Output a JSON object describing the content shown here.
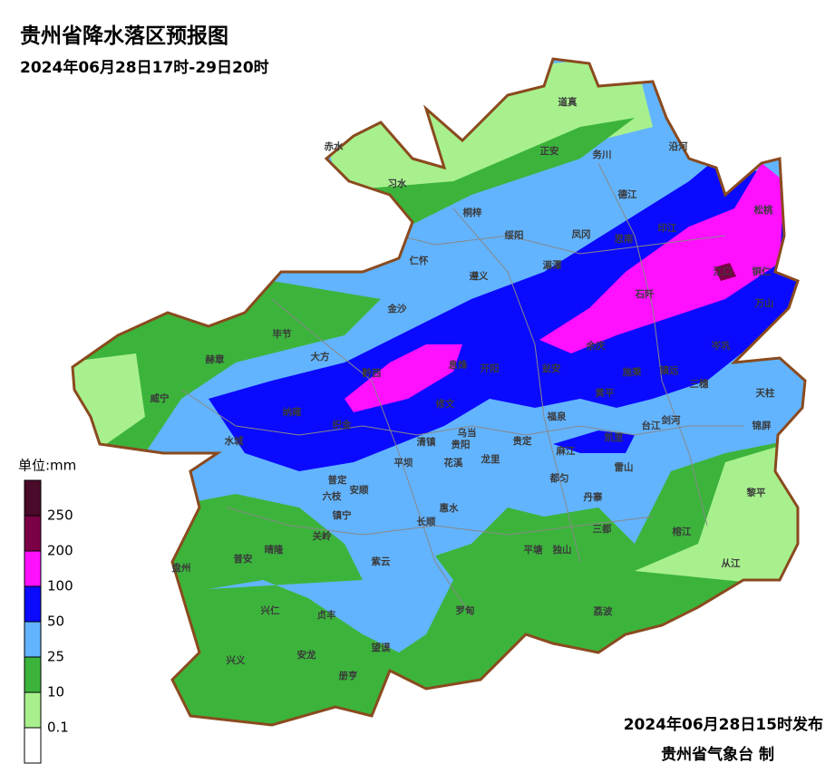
{
  "header": {
    "title": "贵州省降水落区预报图",
    "subtitle": "2024年06月28日17时-29日20时"
  },
  "legend": {
    "title": "单位:mm",
    "ticks": [
      250,
      200,
      100,
      50,
      25,
      10,
      0.1
    ],
    "colors": [
      "#4a0a2a",
      "#7b0046",
      "#ff10ff",
      "#0a0aff",
      "#62b4ff",
      "#3cb43c",
      "#a8f08e",
      "#ffffff"
    ]
  },
  "counties": [
    "道真",
    "赤水",
    "正安",
    "务川",
    "沿河",
    "习水",
    "德江",
    "松桃",
    "桐梓",
    "印江",
    "思南",
    "绥阳",
    "凤冈",
    "江口",
    "铜仁",
    "仁怀",
    "湄潭",
    "遵义",
    "石阡",
    "万山",
    "金沙",
    "毕节",
    "余庆",
    "岑巩",
    "大方",
    "黔西",
    "息烽",
    "开阳",
    "瓮安",
    "施秉",
    "镇远",
    "三穗",
    "天柱",
    "赫章",
    "威宁",
    "纳雍",
    "织金",
    "修文",
    "黄平",
    "福泉",
    "台江",
    "剑河",
    "锦屏",
    "凯里",
    "水城",
    "清镇",
    "乌当",
    "贵阳",
    "贵定",
    "麻江",
    "平坝",
    "花溪",
    "龙里",
    "雷山",
    "六枝",
    "普定",
    "安顺",
    "都匀",
    "丹寨",
    "黎平",
    "惠水",
    "镇宁",
    "长顺",
    "关岭",
    "三都",
    "榕江",
    "晴隆",
    "普安",
    "盘州",
    "平塘",
    "独山",
    "从江",
    "紫云",
    "兴仁",
    "贞丰",
    "罗甸",
    "荔波",
    "望谟",
    "兴义",
    "安龙",
    "册亨"
  ],
  "footer": {
    "issued": "2024年06月28日15时发布",
    "agency": "贵州省气象台 制"
  }
}
